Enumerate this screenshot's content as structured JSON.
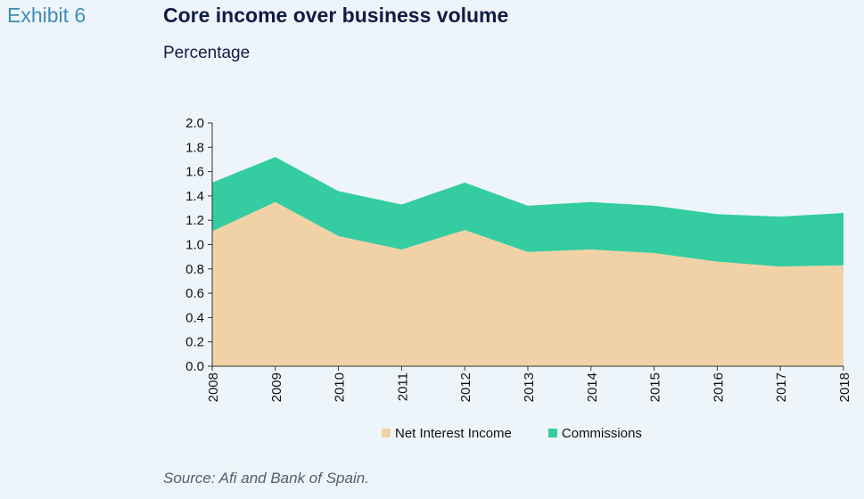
{
  "header": {
    "exhibit": "Exhibit 6",
    "title": "Core income over business volume",
    "subtitle": "Percentage"
  },
  "footer": {
    "source": "Source: Afi and Bank of Spain."
  },
  "colors": {
    "net_interest_income": "#f0d2a6",
    "commissions": "#34cca0",
    "exhibit": "#3d8db5",
    "title": "#0f1d45"
  },
  "chart_data": {
    "type": "area",
    "stacked": true,
    "x": [
      "2008",
      "2009",
      "2010",
      "2011",
      "2012",
      "2013",
      "2014",
      "2015",
      "2016",
      "2017",
      "2018"
    ],
    "series": [
      {
        "name": "Net Interest Income",
        "color": "#f0d2a6",
        "values": [
          1.11,
          1.35,
          1.07,
          0.96,
          1.12,
          0.94,
          0.96,
          0.93,
          0.86,
          0.82,
          0.83
        ]
      },
      {
        "name": "Commissions",
        "color": "#34cca0",
        "values": [
          0.4,
          0.37,
          0.37,
          0.37,
          0.39,
          0.38,
          0.39,
          0.39,
          0.39,
          0.41,
          0.43
        ]
      }
    ],
    "y_ticks": [
      "0.0",
      "0.2",
      "0.4",
      "0.6",
      "0.8",
      "1.0",
      "1.2",
      "1.4",
      "1.6",
      "1.8",
      "2.0"
    ],
    "ylim": [
      0,
      2.0
    ],
    "legend_position": "bottom",
    "grid": false
  }
}
